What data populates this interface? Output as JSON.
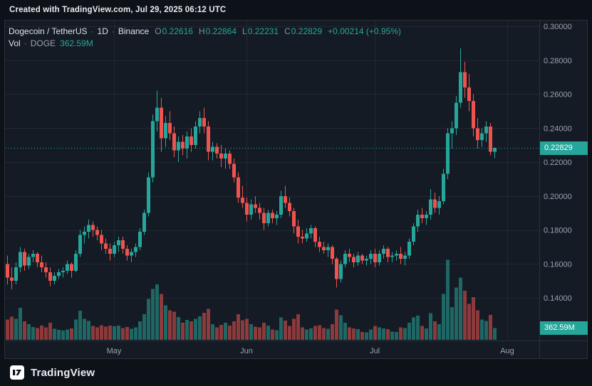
{
  "topbar": {
    "text": "Created with TradingView.com, Jul 29, 2025 06:12 UTC"
  },
  "legend": {
    "symbol": "Dogecoin / TetherUS",
    "separator": "·",
    "interval": "1D",
    "exchange": "Binance",
    "ohlc": {
      "o_label": "O",
      "o": "0.22616",
      "h_label": "H",
      "h": "0.22864",
      "l_label": "L",
      "l": "0.22231",
      "c_label": "C",
      "c": "0.22829",
      "change": "+0.00214 (+0.95%)"
    },
    "volume_row": {
      "label": "Vol",
      "separator": "·",
      "symbol": "DOGE",
      "value": "362.59M"
    }
  },
  "price_scale": {
    "last_price_label": "0.22829",
    "volume_label": "362.59M"
  },
  "footer": {
    "brand": "TradingView"
  },
  "colors": {
    "up": "#26a69a",
    "down": "#ef5350",
    "vol_up": "rgba(38,166,154,0.55)",
    "vol_down": "rgba(239,83,80,0.55)",
    "grid": "rgba(197,203,220,0.08)",
    "border": "#2a2f3a",
    "axis_text": "#9aa3b2",
    "panel_bg": "#151b24",
    "page_bg": "#0d1118"
  },
  "chart_data": {
    "type": "candlestick",
    "title": "Dogecoin / TetherUS · 1D · Binance",
    "volume_overlay": true,
    "legend_position": "top-left",
    "grid": true,
    "price_axis": {
      "visible_min": 0.115,
      "visible_max": 0.304,
      "ticks": [
        {
          "value": 0.3,
          "label": "0.30000"
        },
        {
          "value": 0.28,
          "label": "0.28000"
        },
        {
          "value": 0.26,
          "label": "0.26000"
        },
        {
          "value": 0.24,
          "label": "0.24000"
        },
        {
          "value": 0.22,
          "label": "0.22000"
        },
        {
          "value": 0.2,
          "label": "0.20000"
        },
        {
          "value": 0.18,
          "label": "0.18000"
        },
        {
          "value": 0.16,
          "label": "0.16000"
        },
        {
          "value": 0.14,
          "label": "0.14000"
        }
      ]
    },
    "time_axis": {
      "start_date": "2025-04-06",
      "end_date": "2025-07-29",
      "month_marks": [
        {
          "label": "May",
          "index": 25
        },
        {
          "label": "Jun",
          "index": 56
        },
        {
          "label": "Jul",
          "index": 86
        },
        {
          "label": "Aug",
          "index": 117
        }
      ]
    },
    "volume_axis": {
      "max_visible_millions": 2500
    },
    "last_bar": {
      "open": 0.22616,
      "high": 0.22864,
      "low": 0.22231,
      "close": 0.22829,
      "change": 0.00214,
      "change_pct": 0.95,
      "volume_label": "362.59M"
    },
    "candles_format": [
      "date",
      "open",
      "high",
      "low",
      "close",
      "volume_millions"
    ],
    "candles": [
      [
        "2025-04-06",
        0.16,
        0.165,
        0.148,
        0.152,
        620
      ],
      [
        "2025-04-07",
        0.152,
        0.158,
        0.145,
        0.15,
        710
      ],
      [
        "2025-04-08",
        0.15,
        0.161,
        0.148,
        0.158,
        640
      ],
      [
        "2025-04-09",
        0.158,
        0.17,
        0.155,
        0.167,
        980
      ],
      [
        "2025-04-10",
        0.167,
        0.169,
        0.156,
        0.159,
        560
      ],
      [
        "2025-04-11",
        0.159,
        0.166,
        0.157,
        0.164,
        480
      ],
      [
        "2025-04-12",
        0.164,
        0.168,
        0.161,
        0.166,
        390
      ],
      [
        "2025-04-13",
        0.166,
        0.167,
        0.158,
        0.161,
        360
      ],
      [
        "2025-04-14",
        0.161,
        0.165,
        0.155,
        0.158,
        430
      ],
      [
        "2025-04-15",
        0.158,
        0.161,
        0.152,
        0.155,
        380
      ],
      [
        "2025-04-16",
        0.155,
        0.158,
        0.147,
        0.15,
        520
      ],
      [
        "2025-04-17",
        0.15,
        0.155,
        0.148,
        0.153,
        340
      ],
      [
        "2025-04-18",
        0.153,
        0.157,
        0.151,
        0.155,
        300
      ],
      [
        "2025-04-19",
        0.155,
        0.158,
        0.152,
        0.156,
        280
      ],
      [
        "2025-04-20",
        0.156,
        0.162,
        0.154,
        0.16,
        310
      ],
      [
        "2025-04-21",
        0.16,
        0.161,
        0.152,
        0.156,
        350
      ],
      [
        "2025-04-22",
        0.156,
        0.168,
        0.155,
        0.166,
        620
      ],
      [
        "2025-04-23",
        0.166,
        0.18,
        0.164,
        0.177,
        890
      ],
      [
        "2025-04-24",
        0.177,
        0.182,
        0.172,
        0.179,
        640
      ],
      [
        "2025-04-25",
        0.179,
        0.186,
        0.175,
        0.183,
        580
      ],
      [
        "2025-04-26",
        0.183,
        0.185,
        0.176,
        0.18,
        420
      ],
      [
        "2025-04-27",
        0.18,
        0.182,
        0.174,
        0.177,
        380
      ],
      [
        "2025-04-28",
        0.177,
        0.18,
        0.168,
        0.172,
        450
      ],
      [
        "2025-04-29",
        0.172,
        0.175,
        0.166,
        0.169,
        400
      ],
      [
        "2025-04-30",
        0.169,
        0.172,
        0.162,
        0.166,
        430
      ],
      [
        "2025-05-01",
        0.166,
        0.173,
        0.164,
        0.171,
        410
      ],
      [
        "2025-05-02",
        0.171,
        0.176,
        0.167,
        0.174,
        430
      ],
      [
        "2025-05-03",
        0.174,
        0.176,
        0.166,
        0.169,
        360
      ],
      [
        "2025-05-04",
        0.169,
        0.171,
        0.162,
        0.165,
        390
      ],
      [
        "2025-05-05",
        0.165,
        0.169,
        0.161,
        0.167,
        340
      ],
      [
        "2025-05-06",
        0.167,
        0.172,
        0.164,
        0.17,
        380
      ],
      [
        "2025-05-07",
        0.17,
        0.181,
        0.168,
        0.179,
        560
      ],
      [
        "2025-05-08",
        0.179,
        0.192,
        0.177,
        0.19,
        780
      ],
      [
        "2025-05-09",
        0.19,
        0.214,
        0.188,
        0.211,
        1250
      ],
      [
        "2025-05-10",
        0.211,
        0.248,
        0.208,
        0.244,
        1550
      ],
      [
        "2025-05-11",
        0.244,
        0.262,
        0.238,
        0.252,
        1700
      ],
      [
        "2025-05-12",
        0.252,
        0.258,
        0.226,
        0.234,
        1400
      ],
      [
        "2025-05-13",
        0.234,
        0.247,
        0.229,
        0.243,
        1050
      ],
      [
        "2025-05-14",
        0.243,
        0.25,
        0.233,
        0.237,
        900
      ],
      [
        "2025-05-15",
        0.237,
        0.241,
        0.223,
        0.227,
        860
      ],
      [
        "2025-05-16",
        0.227,
        0.235,
        0.22,
        0.232,
        700
      ],
      [
        "2025-05-17",
        0.232,
        0.236,
        0.224,
        0.228,
        520
      ],
      [
        "2025-05-18",
        0.228,
        0.238,
        0.222,
        0.235,
        610
      ],
      [
        "2025-05-19",
        0.235,
        0.24,
        0.226,
        0.23,
        560
      ],
      [
        "2025-05-20",
        0.23,
        0.244,
        0.228,
        0.241,
        640
      ],
      [
        "2025-05-21",
        0.241,
        0.25,
        0.237,
        0.246,
        720
      ],
      [
        "2025-05-22",
        0.246,
        0.252,
        0.237,
        0.241,
        830
      ],
      [
        "2025-05-23",
        0.241,
        0.244,
        0.221,
        0.226,
        950
      ],
      [
        "2025-05-24",
        0.226,
        0.232,
        0.221,
        0.229,
        480
      ],
      [
        "2025-05-25",
        0.229,
        0.231,
        0.222,
        0.225,
        380
      ],
      [
        "2025-05-26",
        0.225,
        0.23,
        0.217,
        0.222,
        460
      ],
      [
        "2025-05-27",
        0.222,
        0.228,
        0.216,
        0.225,
        520
      ],
      [
        "2025-05-28",
        0.225,
        0.227,
        0.216,
        0.219,
        440
      ],
      [
        "2025-05-29",
        0.219,
        0.222,
        0.208,
        0.211,
        560
      ],
      [
        "2025-05-30",
        0.211,
        0.214,
        0.196,
        0.199,
        780
      ],
      [
        "2025-05-31",
        0.199,
        0.206,
        0.193,
        0.196,
        600
      ],
      [
        "2025-06-01",
        0.196,
        0.199,
        0.185,
        0.189,
        640
      ],
      [
        "2025-06-02",
        0.189,
        0.198,
        0.186,
        0.195,
        480
      ],
      [
        "2025-06-03",
        0.195,
        0.2,
        0.19,
        0.193,
        400
      ],
      [
        "2025-06-04",
        0.193,
        0.196,
        0.186,
        0.19,
        380
      ],
      [
        "2025-06-05",
        0.19,
        0.193,
        0.18,
        0.184,
        520
      ],
      [
        "2025-06-06",
        0.184,
        0.192,
        0.182,
        0.19,
        430
      ],
      [
        "2025-06-07",
        0.19,
        0.192,
        0.184,
        0.187,
        310
      ],
      [
        "2025-06-08",
        0.187,
        0.191,
        0.183,
        0.189,
        290
      ],
      [
        "2025-06-09",
        0.189,
        0.203,
        0.187,
        0.2,
        680
      ],
      [
        "2025-06-10",
        0.2,
        0.206,
        0.193,
        0.196,
        590
      ],
      [
        "2025-06-11",
        0.196,
        0.199,
        0.188,
        0.191,
        420
      ],
      [
        "2025-06-12",
        0.191,
        0.193,
        0.178,
        0.182,
        640
      ],
      [
        "2025-06-13",
        0.182,
        0.186,
        0.172,
        0.176,
        780
      ],
      [
        "2025-06-14",
        0.176,
        0.18,
        0.172,
        0.175,
        380
      ],
      [
        "2025-06-15",
        0.175,
        0.181,
        0.173,
        0.178,
        320
      ],
      [
        "2025-06-16",
        0.178,
        0.183,
        0.175,
        0.181,
        350
      ],
      [
        "2025-06-17",
        0.181,
        0.182,
        0.17,
        0.173,
        420
      ],
      [
        "2025-06-18",
        0.173,
        0.176,
        0.167,
        0.17,
        450
      ],
      [
        "2025-06-19",
        0.17,
        0.173,
        0.166,
        0.168,
        360
      ],
      [
        "2025-06-20",
        0.168,
        0.172,
        0.164,
        0.17,
        340
      ],
      [
        "2025-06-21",
        0.17,
        0.171,
        0.16,
        0.163,
        480
      ],
      [
        "2025-06-22",
        0.163,
        0.164,
        0.146,
        0.151,
        920
      ],
      [
        "2025-06-23",
        0.151,
        0.162,
        0.149,
        0.16,
        750
      ],
      [
        "2025-06-24",
        0.16,
        0.168,
        0.158,
        0.166,
        520
      ],
      [
        "2025-06-25",
        0.166,
        0.169,
        0.161,
        0.164,
        380
      ],
      [
        "2025-06-26",
        0.164,
        0.166,
        0.158,
        0.161,
        350
      ],
      [
        "2025-06-27",
        0.161,
        0.167,
        0.159,
        0.165,
        330
      ],
      [
        "2025-06-28",
        0.165,
        0.166,
        0.16,
        0.162,
        240
      ],
      [
        "2025-06-29",
        0.162,
        0.165,
        0.159,
        0.163,
        230
      ],
      [
        "2025-06-30",
        0.163,
        0.168,
        0.16,
        0.166,
        310
      ],
      [
        "2025-07-01",
        0.166,
        0.169,
        0.158,
        0.161,
        420
      ],
      [
        "2025-07-02",
        0.161,
        0.168,
        0.159,
        0.166,
        380
      ],
      [
        "2025-07-03",
        0.166,
        0.171,
        0.163,
        0.169,
        350
      ],
      [
        "2025-07-04",
        0.169,
        0.17,
        0.161,
        0.164,
        330
      ],
      [
        "2025-07-05",
        0.164,
        0.167,
        0.161,
        0.165,
        250
      ],
      [
        "2025-07-06",
        0.165,
        0.168,
        0.162,
        0.166,
        240
      ],
      [
        "2025-07-07",
        0.166,
        0.17,
        0.16,
        0.163,
        380
      ],
      [
        "2025-07-08",
        0.163,
        0.167,
        0.159,
        0.165,
        360
      ],
      [
        "2025-07-09",
        0.165,
        0.175,
        0.163,
        0.173,
        520
      ],
      [
        "2025-07-10",
        0.173,
        0.184,
        0.171,
        0.182,
        680
      ],
      [
        "2025-07-11",
        0.182,
        0.192,
        0.179,
        0.189,
        740
      ],
      [
        "2025-07-12",
        0.189,
        0.193,
        0.184,
        0.187,
        420
      ],
      [
        "2025-07-13",
        0.187,
        0.191,
        0.183,
        0.189,
        350
      ],
      [
        "2025-07-14",
        0.189,
        0.204,
        0.186,
        0.198,
        820
      ],
      [
        "2025-07-15",
        0.198,
        0.202,
        0.19,
        0.193,
        560
      ],
      [
        "2025-07-16",
        0.193,
        0.2,
        0.189,
        0.197,
        480
      ],
      [
        "2025-07-17",
        0.197,
        0.216,
        0.195,
        0.213,
        1400
      ],
      [
        "2025-07-18",
        0.213,
        0.24,
        0.21,
        0.237,
        2450
      ],
      [
        "2025-07-19",
        0.237,
        0.244,
        0.228,
        0.24,
        1000
      ],
      [
        "2025-07-20",
        0.24,
        0.259,
        0.236,
        0.255,
        1600
      ],
      [
        "2025-07-21",
        0.255,
        0.287,
        0.252,
        0.273,
        1900
      ],
      [
        "2025-07-22",
        0.273,
        0.279,
        0.258,
        0.264,
        1500
      ],
      [
        "2025-07-23",
        0.264,
        0.272,
        0.25,
        0.256,
        1100
      ],
      [
        "2025-07-24",
        0.256,
        0.26,
        0.235,
        0.24,
        1300
      ],
      [
        "2025-07-25",
        0.24,
        0.246,
        0.228,
        0.233,
        900
      ],
      [
        "2025-07-26",
        0.233,
        0.24,
        0.229,
        0.237,
        620
      ],
      [
        "2025-07-27",
        0.237,
        0.244,
        0.232,
        0.241,
        580
      ],
      [
        "2025-07-28",
        0.241,
        0.243,
        0.224,
        0.226,
        760
      ],
      [
        "2025-07-29",
        0.22616,
        0.22864,
        0.22231,
        0.22829,
        362.59
      ]
    ]
  }
}
